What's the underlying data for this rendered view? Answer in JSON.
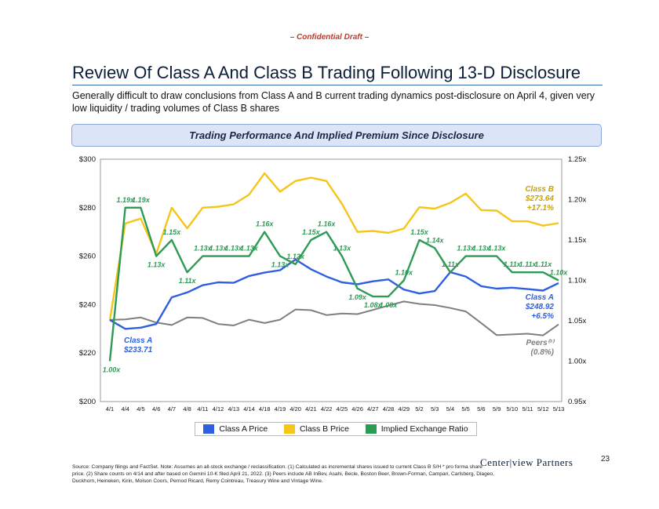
{
  "header": {
    "confidential": "– Confidential Draft –",
    "title": "Review Of Class A And Class B Trading Following 13-D Disclosure",
    "subtitle": "Generally difficult to draw conclusions from Class A and B current trading dynamics post-disclosure on April 4, given very low liquidity / trading volumes of Class B shares",
    "banner": "Trading Performance And Implied Premium Since Disclosure"
  },
  "chart_data": {
    "type": "line",
    "categories": [
      "4/1",
      "4/4",
      "4/5",
      "4/6",
      "4/7",
      "4/8",
      "4/11",
      "4/12",
      "4/13",
      "4/14",
      "4/18",
      "4/19",
      "4/20",
      "4/21",
      "4/22",
      "4/25",
      "4/26",
      "4/27",
      "4/28",
      "4/29",
      "5/2",
      "5/3",
      "5/4",
      "5/5",
      "5/6",
      "5/9",
      "5/10",
      "5/11",
      "5/12",
      "5/13"
    ],
    "y_left": {
      "min": 200,
      "max": 300,
      "ticks": [
        200,
        220,
        240,
        260,
        280,
        300
      ],
      "tick_labels": [
        "$200",
        "$220",
        "$240",
        "$260",
        "$280",
        "$300"
      ]
    },
    "y_right": {
      "min": 0.95,
      "max": 1.25,
      "ticks": [
        0.95,
        1.0,
        1.05,
        1.1,
        1.15,
        1.2,
        1.25
      ],
      "tick_labels": [
        "0.95x",
        "1.00x",
        "1.05x",
        "1.10x",
        "1.15x",
        "1.20x",
        "1.25x"
      ]
    },
    "series": [
      {
        "name": "Class A Price",
        "color": "#2e5fe0",
        "axis": "left",
        "values": [
          233.7,
          230.0,
          230.5,
          232.0,
          243.0,
          245.0,
          248.0,
          249.2,
          249.0,
          251.8,
          253.2,
          254.2,
          258.6,
          254.6,
          251.6,
          249.2,
          248.4,
          249.6,
          250.4,
          246.2,
          244.6,
          245.6,
          253.4,
          251.6,
          247.6,
          246.6,
          247.0,
          246.4,
          245.8,
          248.9
        ]
      },
      {
        "name": "Class B Price",
        "color": "#f5c518",
        "axis": "left",
        "values": [
          233.5,
          273.5,
          275.5,
          261.0,
          280.0,
          271.5,
          280.0,
          280.4,
          281.4,
          285.4,
          294.2,
          286.6,
          291.0,
          292.4,
          291.0,
          281.6,
          270.0,
          270.4,
          269.6,
          271.4,
          280.2,
          279.6,
          282.0,
          285.8,
          279.0,
          278.8,
          274.4,
          274.4,
          272.6,
          273.64
        ]
      },
      {
        "name": "Peers",
        "color": "#7f7f7f",
        "axis": "left",
        "values": [
          233.7,
          233.9,
          234.7,
          232.6,
          231.6,
          234.7,
          234.5,
          232.0,
          231.4,
          233.8,
          232.4,
          233.8,
          238.0,
          237.7,
          235.7,
          236.3,
          236.1,
          237.8,
          239.6,
          241.3,
          240.3,
          239.8,
          238.6,
          237.2,
          232.4,
          227.4,
          227.7,
          228.0,
          227.3,
          231.8
        ]
      },
      {
        "name": "Implied Exchange Ratio",
        "color": "#2e9b55",
        "axis": "right",
        "values": [
          1.0,
          1.19,
          1.19,
          1.13,
          1.15,
          1.11,
          1.13,
          1.13,
          1.13,
          1.13,
          1.16,
          1.13,
          1.12,
          1.15,
          1.16,
          1.13,
          1.09,
          1.08,
          1.08,
          1.1,
          1.15,
          1.14,
          1.11,
          1.13,
          1.13,
          1.13,
          1.11,
          1.11,
          1.11,
          1.1
        ]
      }
    ],
    "data_labels": [
      {
        "i": 0,
        "text": "1.00x"
      },
      {
        "i": 1,
        "text": "1.19x"
      },
      {
        "i": 2,
        "text": "1.19x"
      },
      {
        "i": 3,
        "text": "1.13x"
      },
      {
        "i": 4,
        "text": "1.15x"
      },
      {
        "i": 5,
        "text": "1.11x"
      },
      {
        "i": 6,
        "text": "1.13x"
      },
      {
        "i": 7,
        "text": "1.13x"
      },
      {
        "i": 8,
        "text": "1.13x"
      },
      {
        "i": 9,
        "text": "1.13x"
      },
      {
        "i": 10,
        "text": "1.16x"
      },
      {
        "i": 11,
        "text": "1.13x"
      },
      {
        "i": 12,
        "text": "1.12x"
      },
      {
        "i": 13,
        "text": "1.15x"
      },
      {
        "i": 14,
        "text": "1.16x"
      },
      {
        "i": 15,
        "text": "1.13x"
      },
      {
        "i": 16,
        "text": "1.09x"
      },
      {
        "i": 17,
        "text": "1.08x"
      },
      {
        "i": 18,
        "text": "1.08x"
      },
      {
        "i": 19,
        "text": "1.10x"
      },
      {
        "i": 20,
        "text": "1.15x"
      },
      {
        "i": 21,
        "text": "1.14x"
      },
      {
        "i": 22,
        "text": "1.11x"
      },
      {
        "i": 23,
        "text": "1.13x"
      },
      {
        "i": 24,
        "text": "1.13x"
      },
      {
        "i": 25,
        "text": "1.13x"
      },
      {
        "i": 26,
        "text": "1.11x"
      },
      {
        "i": 27,
        "text": "1.11x"
      },
      {
        "i": 28,
        "text": "1.11x"
      },
      {
        "i": 29,
        "text": "1.10x"
      }
    ],
    "annotations": [
      {
        "name": "class-a-start",
        "lines": [
          "Class A",
          "$233.71"
        ],
        "color": "#2e5fe0"
      },
      {
        "name": "class-b-end",
        "lines": [
          "Class B",
          "$273.64",
          "+17.1%"
        ],
        "color": "#c9a10a"
      },
      {
        "name": "class-a-end",
        "lines": [
          "Class A",
          "$248.92",
          "+6.5%"
        ],
        "color": "#2e5fe0"
      },
      {
        "name": "peers-end",
        "lines": [
          "Peers⁽³⁾",
          "(0.8%)"
        ],
        "color": "#7f7f7f"
      }
    ]
  },
  "legend": {
    "items": [
      {
        "label": "Class A Price",
        "color": "#2e5fe0"
      },
      {
        "label": "Class B Price",
        "color": "#f5c518"
      },
      {
        "label": "Implied Exchange Ratio",
        "color": "#2e9b55"
      }
    ]
  },
  "footer": {
    "source": "Source: Company filings and FactSet. Note: Assumes an all-stock exchange / reclassification. (1) Calculated as incremental shares issued to current Class B S/H * pro forma share price. (2) Share counts on 4/14 and after based on Gemini 10-K filed April 21, 2022. (3) Peers include AB InBev, Asahi, Becle, Boston Beer, Brown-Forman, Campari, Carlsberg, Diageo, Duckhorn, Heineken, Kirin, Molson Coors, Pernod Ricard, Remy Cointreau, Treasury Wine and Vintage Wine.",
    "logo": "Center|view Partners",
    "page_number": "23"
  }
}
